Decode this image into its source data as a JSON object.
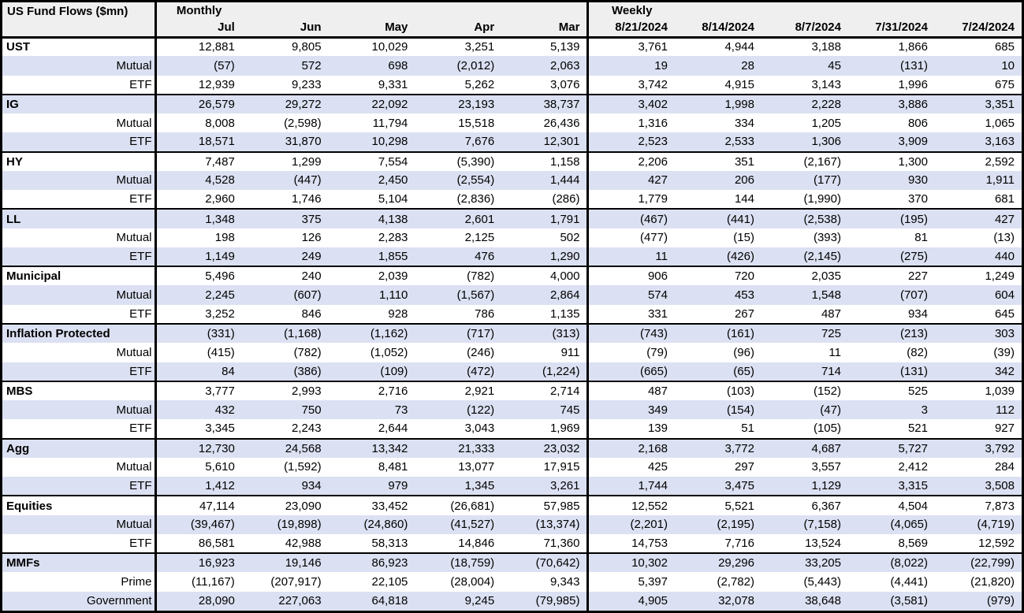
{
  "title": "US Fund Flows ($mn)",
  "colors": {
    "stripe": "#dbe1f2",
    "header_bg": "#efefef",
    "border": "#000000",
    "text": "#000000"
  },
  "sections": [
    {
      "label": "Monthly",
      "columns": [
        "Jul",
        "Jun",
        "May",
        "Apr",
        "Mar"
      ]
    },
    {
      "label": "Weekly",
      "columns": [
        "8/21/2024",
        "8/14/2024",
        "8/7/2024",
        "7/31/2024",
        "7/24/2024"
      ]
    }
  ],
  "rows": [
    {
      "label": "UST",
      "type": "category",
      "monthly": [
        "12,881",
        "9,805",
        "10,029",
        "3,251",
        "5,139"
      ],
      "weekly": [
        "3,761",
        "4,944",
        "3,188",
        "1,866",
        "685"
      ]
    },
    {
      "label": "Mutual",
      "type": "sub",
      "monthly": [
        "(57)",
        "572",
        "698",
        "(2,012)",
        "2,063"
      ],
      "weekly": [
        "19",
        "28",
        "45",
        "(131)",
        "10"
      ]
    },
    {
      "label": "ETF",
      "type": "sub",
      "monthly": [
        "12,939",
        "9,233",
        "9,331",
        "5,262",
        "3,076"
      ],
      "weekly": [
        "3,742",
        "4,915",
        "3,143",
        "1,996",
        "675"
      ]
    },
    {
      "label": "IG",
      "type": "category",
      "monthly": [
        "26,579",
        "29,272",
        "22,092",
        "23,193",
        "38,737"
      ],
      "weekly": [
        "3,402",
        "1,998",
        "2,228",
        "3,886",
        "3,351"
      ]
    },
    {
      "label": "Mutual",
      "type": "sub",
      "monthly": [
        "8,008",
        "(2,598)",
        "11,794",
        "15,518",
        "26,436"
      ],
      "weekly": [
        "1,316",
        "334",
        "1,205",
        "806",
        "1,065"
      ]
    },
    {
      "label": "ETF",
      "type": "sub",
      "monthly": [
        "18,571",
        "31,870",
        "10,298",
        "7,676",
        "12,301"
      ],
      "weekly": [
        "2,523",
        "2,533",
        "1,306",
        "3,909",
        "3,163"
      ]
    },
    {
      "label": "HY",
      "type": "category",
      "monthly": [
        "7,487",
        "1,299",
        "7,554",
        "(5,390)",
        "1,158"
      ],
      "weekly": [
        "2,206",
        "351",
        "(2,167)",
        "1,300",
        "2,592"
      ]
    },
    {
      "label": "Mutual",
      "type": "sub",
      "monthly": [
        "4,528",
        "(447)",
        "2,450",
        "(2,554)",
        "1,444"
      ],
      "weekly": [
        "427",
        "206",
        "(177)",
        "930",
        "1,911"
      ]
    },
    {
      "label": "ETF",
      "type": "sub",
      "monthly": [
        "2,960",
        "1,746",
        "5,104",
        "(2,836)",
        "(286)"
      ],
      "weekly": [
        "1,779",
        "144",
        "(1,990)",
        "370",
        "681"
      ]
    },
    {
      "label": "LL",
      "type": "category",
      "monthly": [
        "1,348",
        "375",
        "4,138",
        "2,601",
        "1,791"
      ],
      "weekly": [
        "(467)",
        "(441)",
        "(2,538)",
        "(195)",
        "427"
      ]
    },
    {
      "label": "Mutual",
      "type": "sub",
      "monthly": [
        "198",
        "126",
        "2,283",
        "2,125",
        "502"
      ],
      "weekly": [
        "(477)",
        "(15)",
        "(393)",
        "81",
        "(13)"
      ]
    },
    {
      "label": "ETF",
      "type": "sub",
      "monthly": [
        "1,149",
        "249",
        "1,855",
        "476",
        "1,290"
      ],
      "weekly": [
        "11",
        "(426)",
        "(2,145)",
        "(275)",
        "440"
      ]
    },
    {
      "label": "Municipal",
      "type": "category",
      "monthly": [
        "5,496",
        "240",
        "2,039",
        "(782)",
        "4,000"
      ],
      "weekly": [
        "906",
        "720",
        "2,035",
        "227",
        "1,249"
      ]
    },
    {
      "label": "Mutual",
      "type": "sub",
      "monthly": [
        "2,245",
        "(607)",
        "1,110",
        "(1,567)",
        "2,864"
      ],
      "weekly": [
        "574",
        "453",
        "1,548",
        "(707)",
        "604"
      ]
    },
    {
      "label": "ETF",
      "type": "sub",
      "monthly": [
        "3,252",
        "846",
        "928",
        "786",
        "1,135"
      ],
      "weekly": [
        "331",
        "267",
        "487",
        "934",
        "645"
      ]
    },
    {
      "label": "Inflation Protected",
      "type": "category",
      "monthly": [
        "(331)",
        "(1,168)",
        "(1,162)",
        "(717)",
        "(313)"
      ],
      "weekly": [
        "(743)",
        "(161)",
        "725",
        "(213)",
        "303"
      ]
    },
    {
      "label": "Mutual",
      "type": "sub",
      "monthly": [
        "(415)",
        "(782)",
        "(1,052)",
        "(246)",
        "911"
      ],
      "weekly": [
        "(79)",
        "(96)",
        "11",
        "(82)",
        "(39)"
      ]
    },
    {
      "label": "ETF",
      "type": "sub",
      "monthly": [
        "84",
        "(386)",
        "(109)",
        "(472)",
        "(1,224)"
      ],
      "weekly": [
        "(665)",
        "(65)",
        "714",
        "(131)",
        "342"
      ]
    },
    {
      "label": "MBS",
      "type": "category",
      "monthly": [
        "3,777",
        "2,993",
        "2,716",
        "2,921",
        "2,714"
      ],
      "weekly": [
        "487",
        "(103)",
        "(152)",
        "525",
        "1,039"
      ]
    },
    {
      "label": "Mutual",
      "type": "sub",
      "monthly": [
        "432",
        "750",
        "73",
        "(122)",
        "745"
      ],
      "weekly": [
        "349",
        "(154)",
        "(47)",
        "3",
        "112"
      ]
    },
    {
      "label": "ETF",
      "type": "sub",
      "monthly": [
        "3,345",
        "2,243",
        "2,644",
        "3,043",
        "1,969"
      ],
      "weekly": [
        "139",
        "51",
        "(105)",
        "521",
        "927"
      ]
    },
    {
      "label": "Agg",
      "type": "category",
      "monthly": [
        "12,730",
        "24,568",
        "13,342",
        "21,333",
        "23,032"
      ],
      "weekly": [
        "2,168",
        "3,772",
        "4,687",
        "5,727",
        "3,792"
      ]
    },
    {
      "label": "Mutual",
      "type": "sub",
      "monthly": [
        "5,610",
        "(1,592)",
        "8,481",
        "13,077",
        "17,915"
      ],
      "weekly": [
        "425",
        "297",
        "3,557",
        "2,412",
        "284"
      ]
    },
    {
      "label": "ETF",
      "type": "sub",
      "monthly": [
        "1,412",
        "934",
        "979",
        "1,345",
        "3,261"
      ],
      "weekly": [
        "1,744",
        "3,475",
        "1,129",
        "3,315",
        "3,508"
      ]
    },
    {
      "label": "Equities",
      "type": "category",
      "monthly": [
        "47,114",
        "23,090",
        "33,452",
        "(26,681)",
        "57,985"
      ],
      "weekly": [
        "12,552",
        "5,521",
        "6,367",
        "4,504",
        "7,873"
      ]
    },
    {
      "label": "Mutual",
      "type": "sub",
      "monthly": [
        "(39,467)",
        "(19,898)",
        "(24,860)",
        "(41,527)",
        "(13,374)"
      ],
      "weekly": [
        "(2,201)",
        "(2,195)",
        "(7,158)",
        "(4,065)",
        "(4,719)"
      ]
    },
    {
      "label": "ETF",
      "type": "sub",
      "monthly": [
        "86,581",
        "42,988",
        "58,313",
        "14,846",
        "71,360"
      ],
      "weekly": [
        "14,753",
        "7,716",
        "13,524",
        "8,569",
        "12,592"
      ]
    },
    {
      "label": "MMFs",
      "type": "category",
      "monthly": [
        "16,923",
        "19,146",
        "86,923",
        "(18,759)",
        "(70,642)"
      ],
      "weekly": [
        "10,302",
        "29,296",
        "33,205",
        "(8,022)",
        "(22,799)"
      ]
    },
    {
      "label": "Prime",
      "type": "sub",
      "monthly": [
        "(11,167)",
        "(207,917)",
        "22,105",
        "(28,004)",
        "9,343"
      ],
      "weekly": [
        "5,397",
        "(2,782)",
        "(5,443)",
        "(4,441)",
        "(21,820)"
      ]
    },
    {
      "label": "Government",
      "type": "sub",
      "monthly": [
        "28,090",
        "227,063",
        "64,818",
        "9,245",
        "(79,985)"
      ],
      "weekly": [
        "4,905",
        "32,078",
        "38,648",
        "(3,581)",
        "(979)"
      ]
    }
  ]
}
